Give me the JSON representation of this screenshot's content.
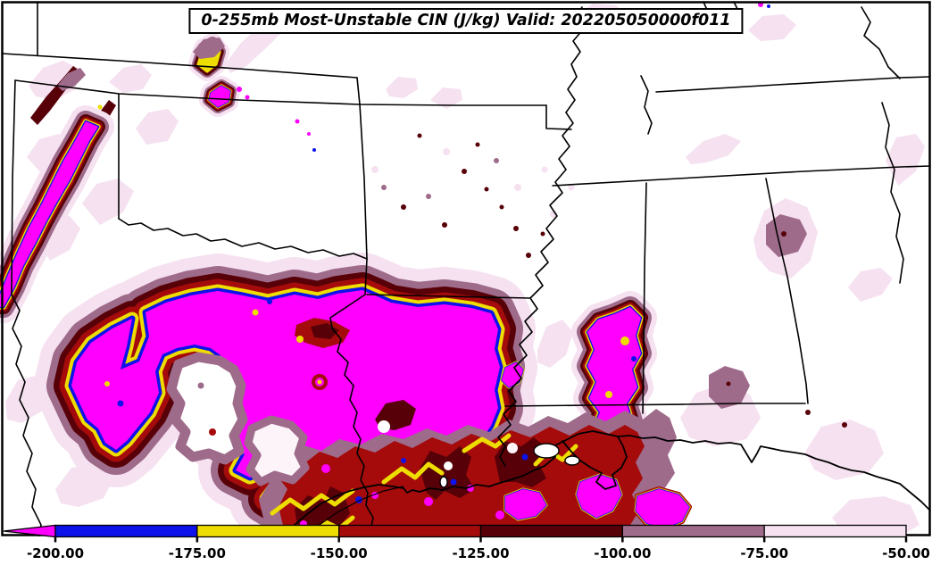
{
  "title": {
    "text": "0-255mb Most-Unstable CIN (J/kg) Valid: 202205050000f011"
  },
  "chart_data": {
    "type": "heatmap",
    "title": "0-255mb Most-Unstable CIN (J/kg) Valid: 202205050000f011",
    "variable": "0-255mb Most-Unstable CIN",
    "units": "J/kg",
    "valid_time": "202205050000f011",
    "colorbar": {
      "orientation": "horizontal",
      "extend": "min",
      "levels": [
        -200,
        -175,
        -150,
        -125,
        -100,
        -75,
        -50
      ],
      "tick_labels": [
        "-200.00",
        "-175.00",
        "-150.00",
        "-125.00",
        "-100.00",
        "-75.00",
        "-50.00"
      ],
      "segment_colors": [
        "#0d12ea",
        "#eedd00",
        "#a50b0b",
        "#570008",
        "#9e6b8a",
        "#f6e1f1"
      ],
      "under_arrow_color": "#ff00ff",
      "bin_meaning": [
        {
          "range": "< -200",
          "color": "#ff00ff"
        },
        {
          "range": "-200 to -175",
          "color": "#0d12ea"
        },
        {
          "range": "-175 to -150",
          "color": "#eedd00"
        },
        {
          "range": "-150 to -125",
          "color": "#a50b0b"
        },
        {
          "range": "-125 to -100",
          "color": "#570008"
        },
        {
          "range": "-100 to -75",
          "color": "#9e6b8a"
        },
        {
          "range": "-75 to -50",
          "color": "#f6e1f1"
        }
      ]
    }
  },
  "palette": {
    "magenta": "#ff00ff",
    "blue": "#0d12ea",
    "yellow": "#eedd00",
    "fire": "#a50b0b",
    "maroon": "#570008",
    "mauve": "#9e6b8a",
    "lightpink": "#f6e1f1",
    "paleblush": "#fdf4fa"
  }
}
